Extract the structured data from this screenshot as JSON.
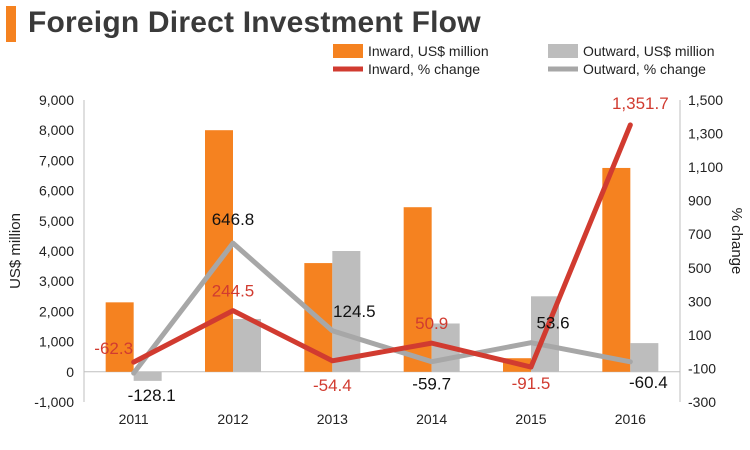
{
  "header": {
    "title": "Foreign Direct Investment Flow"
  },
  "colors": {
    "inward": "#f58220",
    "outward": "#bdbdbd",
    "inward_line": "#d13b30",
    "outward_line": "#a7a7a7",
    "label_red": "#d13b30",
    "label_black": "#111111"
  },
  "chart_data": {
    "type": "bar+line",
    "title": "Foreign Direct Investment Flow",
    "categories": [
      "2011",
      "2012",
      "2013",
      "2014",
      "2015",
      "2016"
    ],
    "bar_series": [
      {
        "name": "Inward, US$ million",
        "values": [
          2300,
          8000,
          3600,
          5450,
          450,
          6750
        ]
      },
      {
        "name": "Outward, US$ million",
        "values": [
          -300,
          1750,
          4000,
          1600,
          2500,
          950
        ]
      }
    ],
    "line_series": [
      {
        "name": "Inward, % change",
        "values": [
          -62.3,
          244.5,
          -54.4,
          50.9,
          -91.5,
          1351.7
        ],
        "labels": [
          "-62.3",
          "244.5",
          "-54.4",
          "50.9",
          "-91.5",
          "1,351.7"
        ]
      },
      {
        "name": "Outward, % change",
        "values": [
          -128.1,
          646.8,
          124.5,
          -59.7,
          53.6,
          -60.4
        ],
        "labels": [
          "-128.1",
          "646.8",
          "124.5",
          "-59.7",
          "53.6",
          "-60.4"
        ]
      }
    ],
    "ylabel": "US$ million",
    "y2label": "% change",
    "ylim": [
      -1000,
      9000
    ],
    "y2lim": [
      -300,
      1500
    ],
    "yticks": [
      -1000,
      0,
      1000,
      2000,
      3000,
      4000,
      5000,
      6000,
      7000,
      8000,
      9000
    ],
    "ytick_labels": [
      "-1,000",
      "0",
      "1,000",
      "2,000",
      "3,000",
      "4,000",
      "5,000",
      "6,000",
      "7,000",
      "8,000",
      "9,000"
    ],
    "y2ticks": [
      -300,
      -100,
      100,
      300,
      500,
      700,
      900,
      1100,
      1300,
      1500
    ],
    "y2tick_labels": [
      "-300",
      "-100",
      "100",
      "300",
      "500",
      "700",
      "900",
      "1,100",
      "1,300",
      "1,500"
    ],
    "legend_position": "top-right",
    "grid": false
  }
}
